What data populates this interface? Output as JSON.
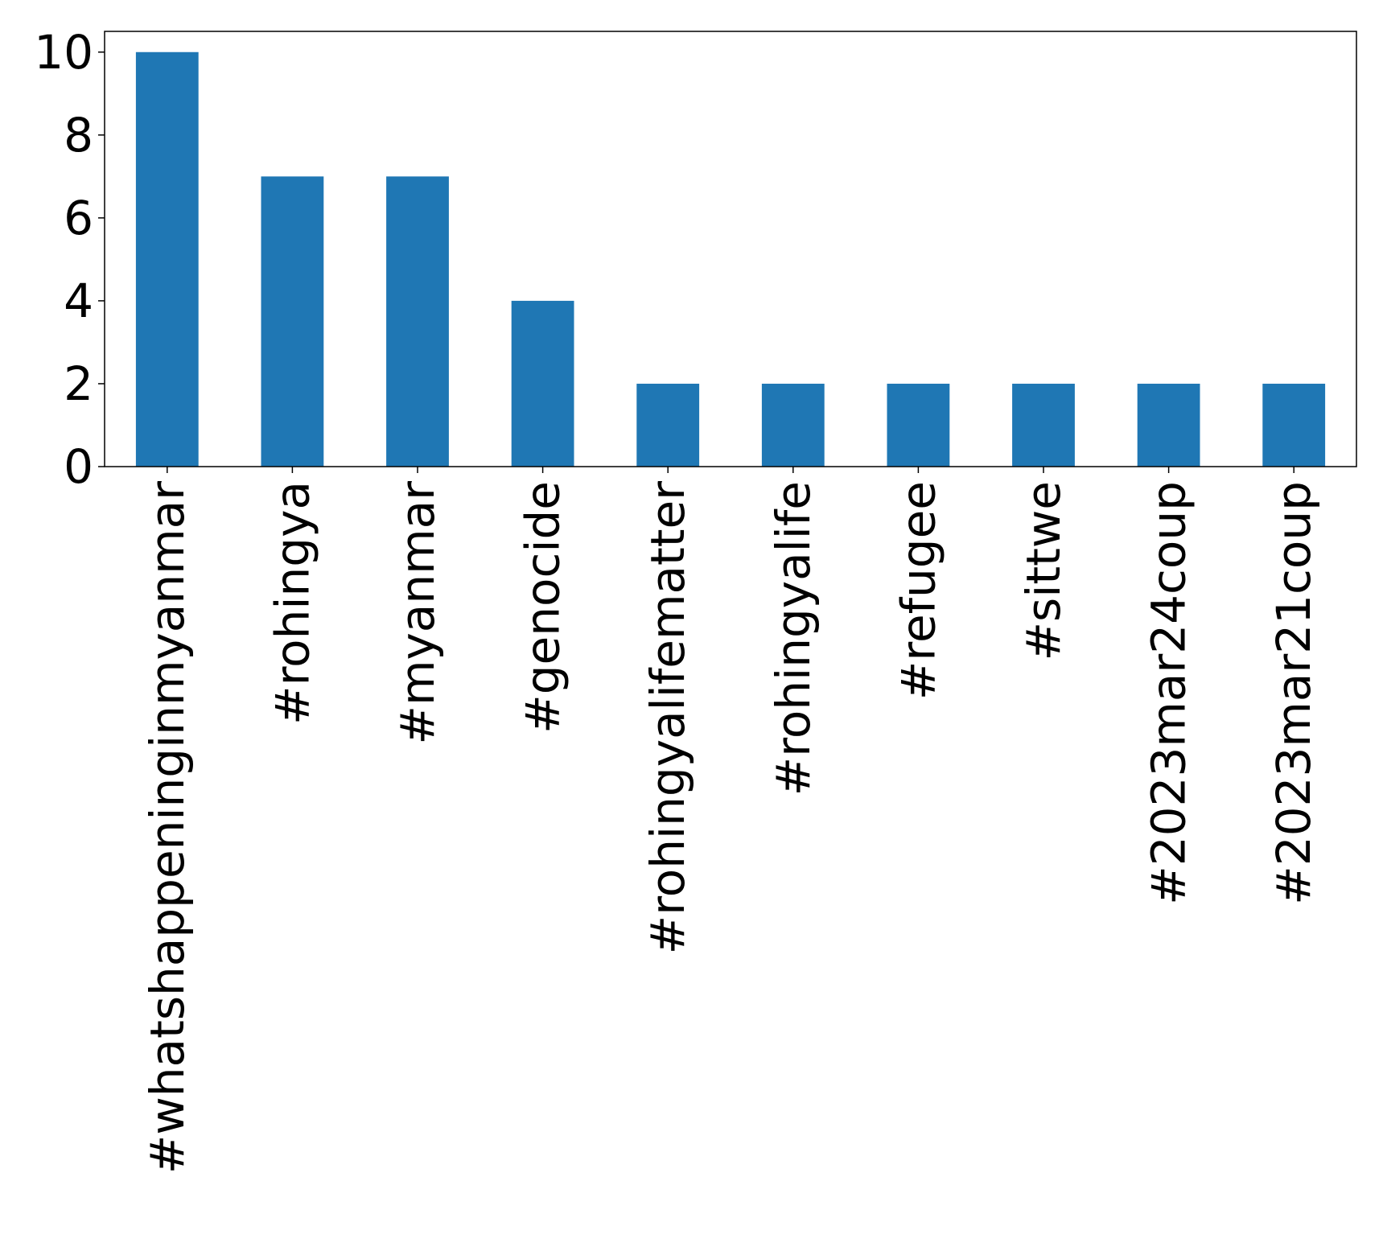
{
  "chart_data": {
    "type": "bar",
    "title": "",
    "xlabel": "",
    "ylabel": "",
    "categories": [
      "#whatshappeninginmyanmar",
      "#rohingya",
      "#myanmar",
      "#genocide",
      "#rohingyalifematter",
      "#rohingyalife",
      "#refugee",
      "#sittwe",
      "#2023mar24coup",
      "#2023mar21coup"
    ],
    "values": [
      10,
      7,
      7,
      4,
      2,
      2,
      2,
      2,
      2,
      2
    ],
    "ylim": [
      0,
      10.5
    ],
    "yticks": [
      0,
      2,
      4,
      6,
      8,
      10
    ],
    "bar_color": "#1f77b4",
    "grid": false,
    "legend": "none"
  }
}
